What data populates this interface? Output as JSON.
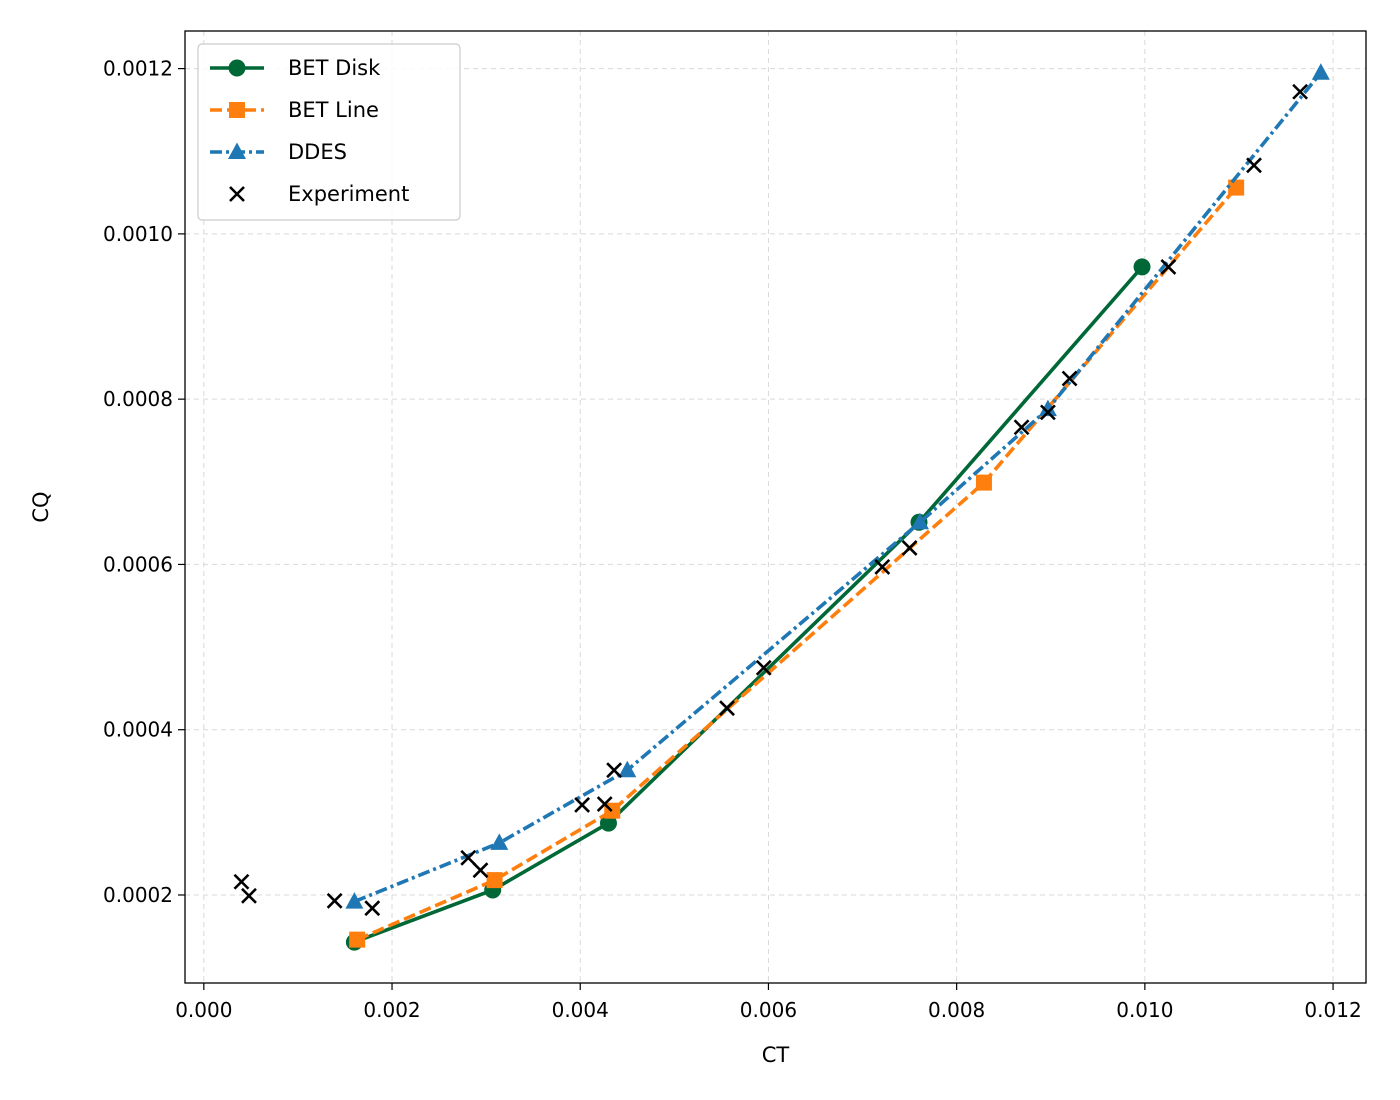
{
  "chart_data": {
    "type": "line",
    "title": "",
    "xlabel": "CT",
    "ylabel": "CQ",
    "xlim": [
      -0.0002,
      0.01235
    ],
    "ylim": [
      9.35e-05,
      0.0012455
    ],
    "xticks": [
      0.0,
      0.002,
      0.004,
      0.006,
      0.008,
      0.01,
      0.012
    ],
    "xtick_labels": [
      "0.000",
      "0.002",
      "0.004",
      "0.006",
      "0.008",
      "0.010",
      "0.012"
    ],
    "yticks": [
      0.0002,
      0.0004,
      0.0006,
      0.0008,
      0.001,
      0.0012
    ],
    "ytick_labels": [
      "0.0002",
      "0.0004",
      "0.0006",
      "0.0008",
      "0.0010",
      "0.0012"
    ],
    "grid": true,
    "legend_position": "top-left",
    "series": [
      {
        "name": "BET Disk",
        "color": "#006837",
        "line": "solid",
        "marker": "circle",
        "x": [
          0.0016,
          0.00307,
          0.0043,
          0.0076,
          0.00997
        ],
        "y": [
          0.000143,
          0.000206,
          0.000287,
          0.000651,
          0.00096
        ]
      },
      {
        "name": "BET Line",
        "color": "#ff7f0e",
        "line": "dashed",
        "marker": "square",
        "x": [
          0.00163,
          0.00309,
          0.00434,
          0.00829,
          0.01097
        ],
        "y": [
          0.000146,
          0.000218,
          0.000302,
          0.000699,
          0.001056
        ]
      },
      {
        "name": "DDES",
        "color": "#1f77b4",
        "line": "dashdot",
        "marker": "triangle",
        "x": [
          0.0016,
          0.00314,
          0.0045,
          0.00761,
          0.00897,
          0.01187
        ],
        "y": [
          0.000192,
          0.000263,
          0.000351,
          0.000651,
          0.000788,
          0.001195
        ]
      },
      {
        "name": "Experiment",
        "color": "#000000",
        "line": "none",
        "marker": "x",
        "x": [
          0.0004,
          0.00048,
          0.00139,
          0.00179,
          0.00281,
          0.00294,
          0.00402,
          0.00426,
          0.00436,
          0.00556,
          0.00595,
          0.00721,
          0.0075,
          0.00869,
          0.00897,
          0.0092,
          0.01025,
          0.01116,
          0.01165
        ],
        "y": [
          0.000216,
          0.000199,
          0.000193,
          0.000184,
          0.000245,
          0.00023,
          0.000309,
          0.00031,
          0.000351,
          0.000426,
          0.000475,
          0.000597,
          0.00062,
          0.000766,
          0.000784,
          0.000825,
          0.00096,
          0.001083,
          0.001172
        ]
      }
    ]
  }
}
